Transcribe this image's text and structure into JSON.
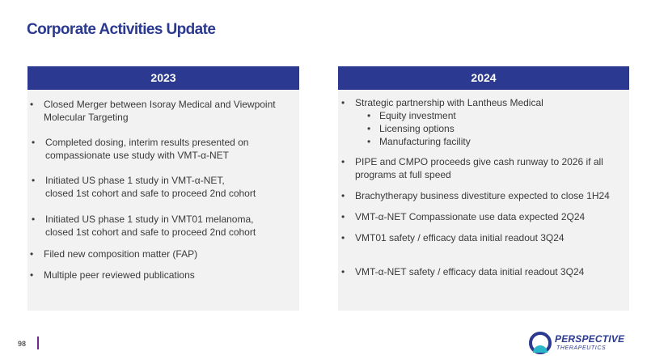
{
  "slide": {
    "title": "Corporate Activities Update",
    "page_number": "98"
  },
  "left_panel": {
    "year": "2023",
    "items": [
      [
        "Closed Merger between Isoray Medical and Viewpoint",
        "Molecular Targeting"
      ],
      [
        "Completed dosing, interim results presented on",
        "compassionate use study with VMT-α-NET"
      ],
      [
        "Initiated US phase 1 study in VMT-α-NET,",
        "closed 1st cohort and safe to proceed 2nd cohort"
      ],
      [
        "Initiated US phase 1 study in VMT01 melanoma,",
        "closed 1st cohort and safe to proceed 2nd cohort"
      ],
      [
        "Filed new composition matter (FAP)"
      ],
      [
        "Multiple peer reviewed publications"
      ]
    ]
  },
  "right_panel": {
    "year": "2024",
    "items": [
      [
        "Strategic partnership with Lantheus Medical"
      ],
      [
        "PIPE and CMPO proceeds give cash runway to 2026 if all",
        "programs at full speed"
      ],
      [
        "Brachytherapy business divestiture expected to close 1H24"
      ],
      [
        "VMT-α-NET Compassionate use data expected 2Q24"
      ],
      [
        "VMT01 safety / efficacy data initial readout  3Q24"
      ],
      [
        "VMT-α-NET safety / efficacy data initial readout 3Q24"
      ]
    ],
    "sub_items": [
      "Equity investment",
      "Licensing options",
      "Manufacturing facility"
    ]
  },
  "logo": {
    "name": "PERSPECTIVE",
    "sub": "THERAPEUTICS",
    "colors": {
      "navy": "#2b3990",
      "teal": "#29b6c9",
      "purple": "#6d2b8a"
    }
  }
}
